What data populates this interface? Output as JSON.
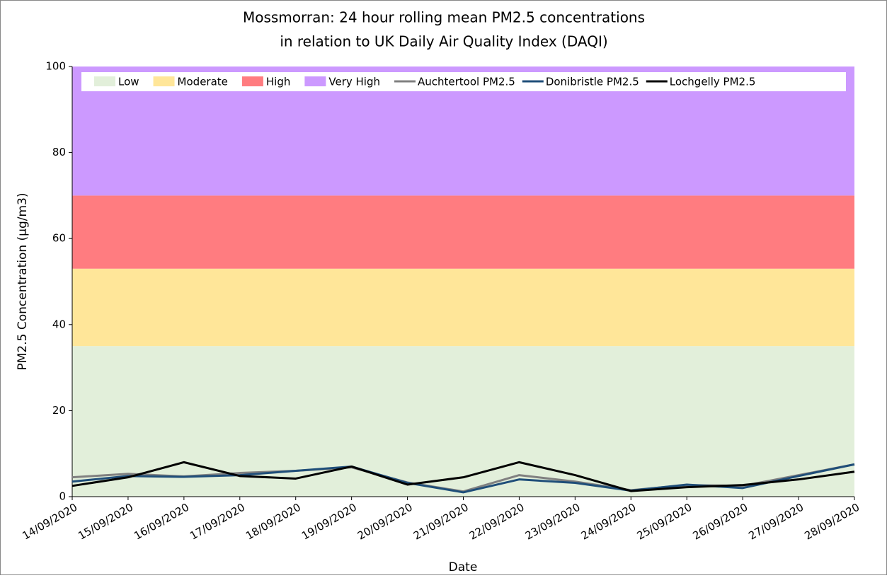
{
  "chart_data": {
    "type": "line",
    "title": [
      "Mossmorran: 24 hour rolling mean PM2.5 concentrations",
      "in relation to UK Daily Air Quality Index (DAQI)"
    ],
    "x_label": "Date",
    "y_label": "PM2.5 Concentration (µg/m3)",
    "x": [
      "14/09/2020",
      "15/09/2020",
      "16/09/2020",
      "17/09/2020",
      "18/09/2020",
      "19/09/2020",
      "20/09/2020",
      "21/09/2020",
      "22/09/2020",
      "23/09/2020",
      "24/09/2020",
      "25/09/2020",
      "26/09/2020",
      "27/09/2020",
      "28/09/2020"
    ],
    "bands": [
      {
        "name": "Low",
        "color": "#e2efda",
        "range": [
          0,
          35
        ]
      },
      {
        "name": "Moderate",
        "color": "#ffe699",
        "range": [
          35,
          53
        ]
      },
      {
        "name": "High",
        "color": "#ff7c80",
        "range": [
          53,
          70
        ]
      },
      {
        "name": "Very High",
        "color": "#cc99ff",
        "range": [
          70,
          100
        ]
      }
    ],
    "series": [
      {
        "name": "Auchtertool PM2.5",
        "color": "#808080",
        "values": [
          4.5,
          5.3,
          4.7,
          5.5,
          6.0,
          6.8,
          3.3,
          1.2,
          5.0,
          3.5,
          1.5,
          2.7,
          2.5,
          5.0,
          7.5
        ]
      },
      {
        "name": "Donibristle PM2.5",
        "color": "#1f4e79",
        "values": [
          3.5,
          4.8,
          4.6,
          5.0,
          6.0,
          7.0,
          3.2,
          1.0,
          4.0,
          3.2,
          1.4,
          2.8,
          2.0,
          4.8,
          7.5
        ]
      },
      {
        "name": "Lochgelly PM2.5",
        "color": "#000000",
        "values": [
          2.5,
          4.5,
          8.0,
          4.8,
          4.2,
          7.0,
          2.8,
          4.5,
          8.0,
          5.0,
          1.3,
          2.2,
          2.7,
          4.0,
          5.8
        ]
      }
    ],
    "ylim": [
      0,
      100
    ],
    "yticks": [
      0,
      20,
      40,
      60,
      80,
      100
    ]
  }
}
